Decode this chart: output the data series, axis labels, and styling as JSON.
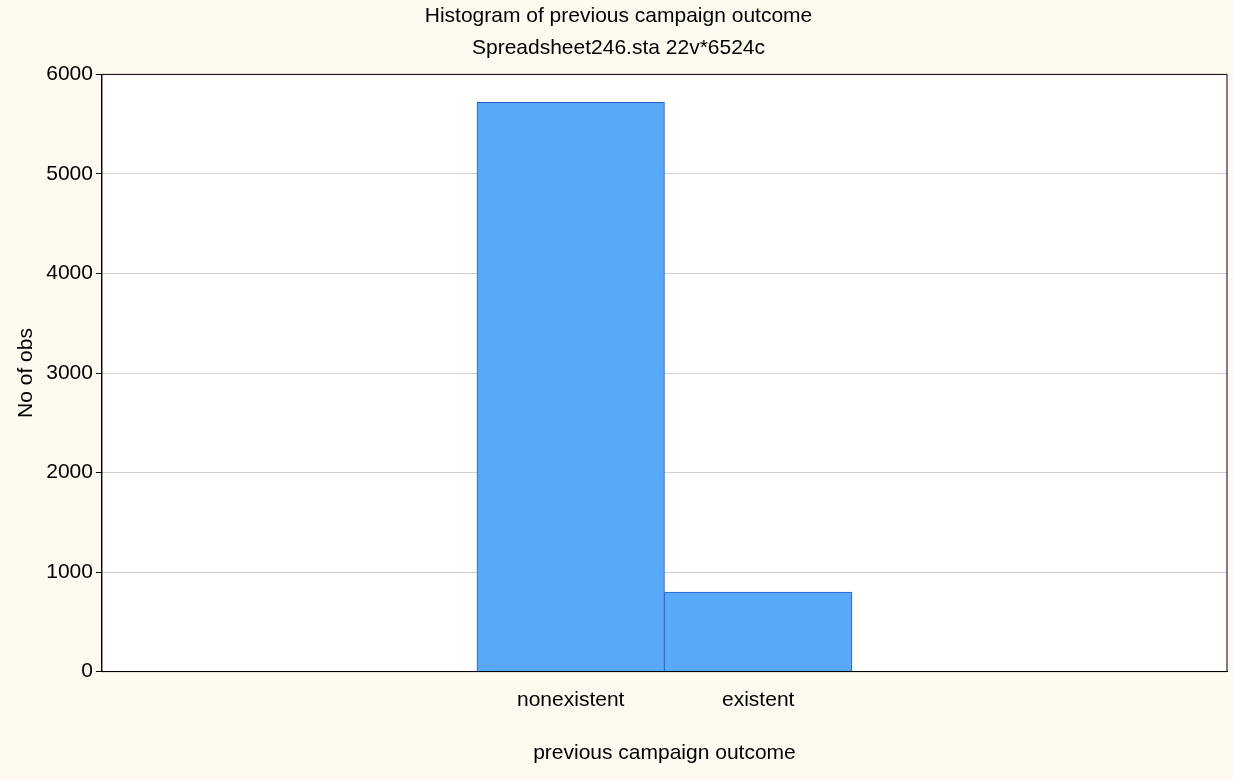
{
  "chart_data": {
    "type": "bar",
    "title": "Histogram of previous campaign outcome",
    "subtitle": "Spreadsheet246.sta 22v*6524c",
    "xlabel": "previous campaign outcome",
    "ylabel": "No of obs",
    "categories": [
      "nonexistent",
      "existent"
    ],
    "values": [
      5720,
      800
    ],
    "color": "#5aa8f8",
    "ylim": [
      0,
      6000
    ],
    "yticks": [
      0,
      1000,
      2000,
      3000,
      4000,
      5000,
      6000
    ],
    "grid": "y",
    "legend": false
  }
}
